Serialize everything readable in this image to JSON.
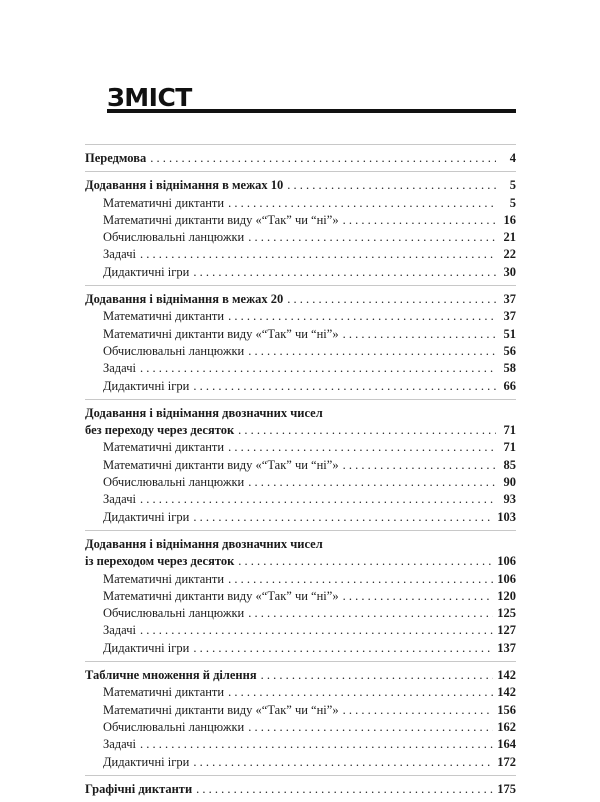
{
  "title": "ЗМІСТ",
  "groups": [
    {
      "entries": [
        {
          "level": "main",
          "label": "Передмова",
          "page": "4"
        }
      ]
    },
    {
      "entries": [
        {
          "level": "main",
          "label": "Додавання і віднімання в межах 10",
          "page": "5"
        },
        {
          "level": "sub",
          "label": "Математичні диктанти",
          "page": "5"
        },
        {
          "level": "sub",
          "label": "Математичні диктанти виду «“Так” чи “ні”»",
          "page": "16"
        },
        {
          "level": "sub",
          "label": "Обчислювальні ланцюжки",
          "page": "21"
        },
        {
          "level": "sub",
          "label": "Задачі",
          "page": "22"
        },
        {
          "level": "sub",
          "label": "Дидактичні ігри",
          "page": "30"
        }
      ]
    },
    {
      "entries": [
        {
          "level": "main",
          "label": "Додавання і віднімання в межах 20",
          "page": "37"
        },
        {
          "level": "sub",
          "label": "Математичні диктанти",
          "page": "37"
        },
        {
          "level": "sub",
          "label": "Математичні диктанти виду «“Так” чи “ні”»",
          "page": "51"
        },
        {
          "level": "sub",
          "label": "Обчислювальні ланцюжки",
          "page": "56"
        },
        {
          "level": "sub",
          "label": "Задачі",
          "page": "58"
        },
        {
          "level": "sub",
          "label": "Дидактичні ігри",
          "page": "66"
        }
      ]
    },
    {
      "entries": [
        {
          "level": "main-head",
          "label": "Додавання і віднімання двозначних чисел",
          "page": ""
        },
        {
          "level": "main",
          "label": "без переходу через десяток",
          "page": "71"
        },
        {
          "level": "sub",
          "label": "Математичні диктанти",
          "page": "71"
        },
        {
          "level": "sub",
          "label": "Математичні диктанти виду «“Так” чи “ні”»",
          "page": "85"
        },
        {
          "level": "sub",
          "label": "Обчислювальні ланцюжки",
          "page": "90"
        },
        {
          "level": "sub",
          "label": "Задачі",
          "page": "93"
        },
        {
          "level": "sub",
          "label": "Дидактичні ігри",
          "page": "103"
        }
      ]
    },
    {
      "entries": [
        {
          "level": "main-head",
          "label": "Додавання і віднімання двозначних чисел",
          "page": ""
        },
        {
          "level": "main",
          "label": "із переходом через десяток",
          "page": "106"
        },
        {
          "level": "sub",
          "label": "Математичні диктанти",
          "page": "106"
        },
        {
          "level": "sub",
          "label": "Математичні диктанти виду «“Так” чи “ні”»",
          "page": "120"
        },
        {
          "level": "sub",
          "label": "Обчислювальні ланцюжки",
          "page": "125"
        },
        {
          "level": "sub",
          "label": "Задачі",
          "page": "127"
        },
        {
          "level": "sub",
          "label": "Дидактичні ігри",
          "page": "137"
        }
      ]
    },
    {
      "entries": [
        {
          "level": "main",
          "label": "Табличне множення й ділення",
          "page": "142"
        },
        {
          "level": "sub",
          "label": "Математичні диктанти",
          "page": "142"
        },
        {
          "level": "sub",
          "label": "Математичні диктанти виду «“Так” чи “ні”»",
          "page": "156"
        },
        {
          "level": "sub",
          "label": "Обчислювальні ланцюжки",
          "page": "162"
        },
        {
          "level": "sub",
          "label": "Задачі",
          "page": "164"
        },
        {
          "level": "sub",
          "label": "Дидактичні ігри",
          "page": "172"
        }
      ]
    },
    {
      "entries": [
        {
          "level": "main",
          "label": "Графічні диктанти",
          "page": "175"
        }
      ]
    }
  ]
}
